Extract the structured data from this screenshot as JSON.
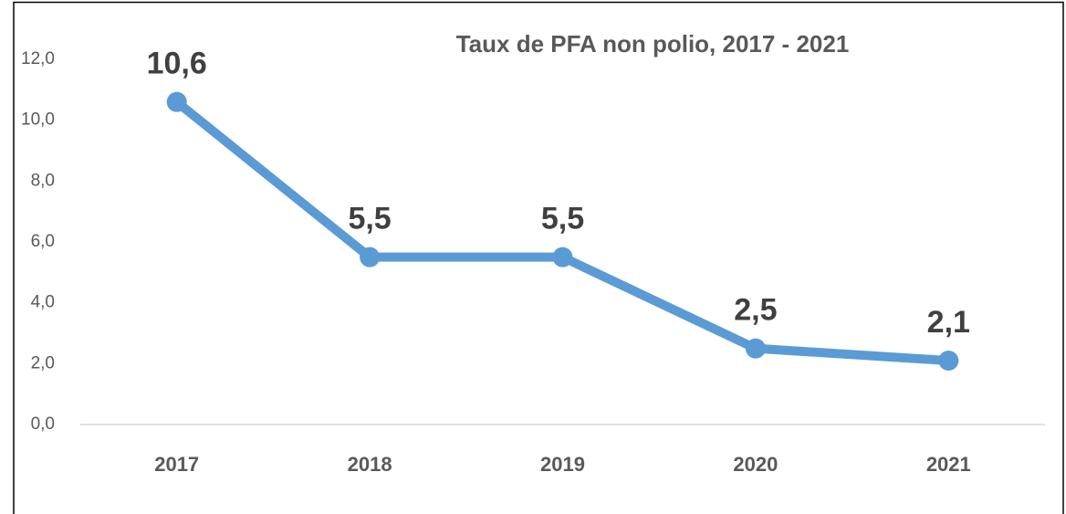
{
  "chart_data": {
    "type": "line",
    "title": "Taux de PFA non polio, 2017 - 2021",
    "categories": [
      "2017",
      "2018",
      "2019",
      "2020",
      "2021"
    ],
    "series": [
      {
        "color": "#5b9bd5",
        "values": [
          10.6,
          5.5,
          5.5,
          2.5,
          2.1
        ],
        "value_labels": [
          "10,6",
          "5,5",
          "5,5",
          "2,5",
          "2,1"
        ]
      }
    ],
    "ylim": [
      0,
      12
    ],
    "yticks": [
      {
        "value": 0,
        "label": "0,0"
      },
      {
        "value": 2,
        "label": "2,0"
      },
      {
        "value": 4,
        "label": "4,0"
      },
      {
        "value": 6,
        "label": "6,0"
      },
      {
        "value": 8,
        "label": "8,0"
      },
      {
        "value": 10,
        "label": "10,0"
      },
      {
        "value": 12,
        "label": "12,0"
      }
    ],
    "grid": false
  }
}
